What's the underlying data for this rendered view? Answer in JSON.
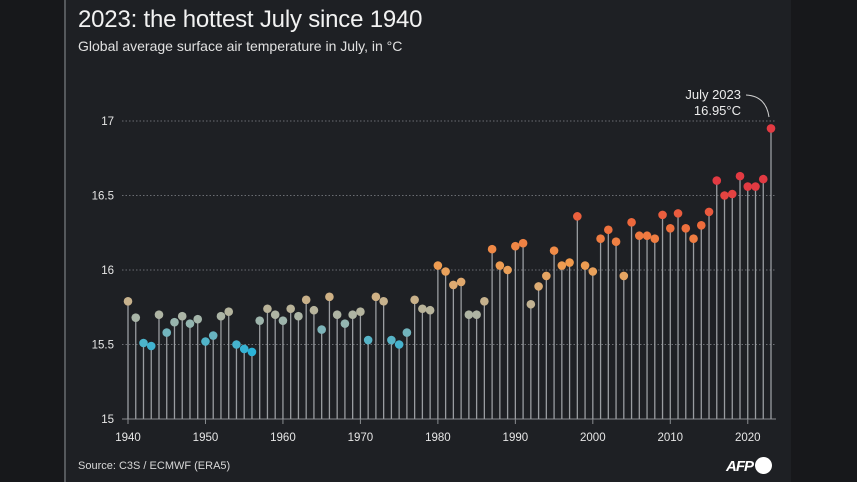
{
  "title": "2023: the hottest July since 1940",
  "subtitle": "Global average surface air temperature in July, in °C",
  "source": "Source: C3S / ECMWF (ERA5)",
  "logo": "AFP",
  "chart_data": {
    "type": "scatter",
    "style": "lollipop",
    "title": "2023: the hottest July since 1940",
    "subtitle": "Global average surface air temperature in July, in °C",
    "xlabel": "",
    "ylabel": "",
    "xlim": [
      1940,
      2023
    ],
    "ylim": [
      15,
      17
    ],
    "grid": "horizontal dotted",
    "x_ticks": [
      "1940",
      "1950",
      "1960",
      "1970",
      "1980",
      "1990",
      "2000",
      "2010",
      "2020"
    ],
    "y_ticks": [
      "15",
      "15.5",
      "16",
      "16.5",
      "17"
    ],
    "color_scale": [
      "#2bb3d8",
      "#a9b5a8",
      "#d7b07e",
      "#f19a4c",
      "#ee6c3c",
      "#e23a42"
    ],
    "annotation": {
      "line1": "July 2023",
      "line2": "16.95°C",
      "x": 2023,
      "y": 16.95
    },
    "x": [
      1940,
      1941,
      1942,
      1943,
      1944,
      1945,
      1946,
      1947,
      1948,
      1949,
      1950,
      1951,
      1952,
      1953,
      1954,
      1955,
      1956,
      1957,
      1958,
      1959,
      1960,
      1961,
      1962,
      1963,
      1964,
      1965,
      1966,
      1967,
      1968,
      1969,
      1970,
      1971,
      1972,
      1973,
      1974,
      1975,
      1976,
      1977,
      1978,
      1979,
      1980,
      1981,
      1982,
      1983,
      1984,
      1985,
      1986,
      1987,
      1988,
      1989,
      1990,
      1991,
      1992,
      1993,
      1994,
      1995,
      1996,
      1997,
      1998,
      1999,
      2000,
      2001,
      2002,
      2003,
      2004,
      2005,
      2006,
      2007,
      2008,
      2009,
      2010,
      2011,
      2012,
      2013,
      2014,
      2015,
      2016,
      2017,
      2018,
      2019,
      2020,
      2021,
      2022,
      2023
    ],
    "values": [
      15.79,
      15.68,
      15.51,
      15.49,
      15.7,
      15.58,
      15.65,
      15.69,
      15.64,
      15.67,
      15.52,
      15.56,
      15.69,
      15.72,
      15.5,
      15.47,
      15.45,
      15.66,
      15.74,
      15.7,
      15.66,
      15.74,
      15.69,
      15.8,
      15.73,
      15.6,
      15.82,
      15.7,
      15.64,
      15.7,
      15.72,
      15.53,
      15.82,
      15.79,
      15.53,
      15.5,
      15.58,
      15.8,
      15.74,
      15.73,
      16.03,
      15.99,
      15.9,
      15.92,
      15.7,
      15.7,
      15.79,
      16.14,
      16.03,
      16.0,
      16.16,
      16.18,
      15.77,
      15.89,
      15.96,
      16.13,
      16.03,
      16.05,
      16.36,
      16.03,
      15.99,
      16.21,
      16.27,
      16.19,
      15.96,
      16.32,
      16.23,
      16.23,
      16.21,
      16.37,
      16.28,
      16.38,
      16.28,
      16.21,
      16.3,
      16.39,
      16.6,
      16.5,
      16.51,
      16.63,
      16.56,
      16.56,
      16.61,
      16.95
    ]
  }
}
